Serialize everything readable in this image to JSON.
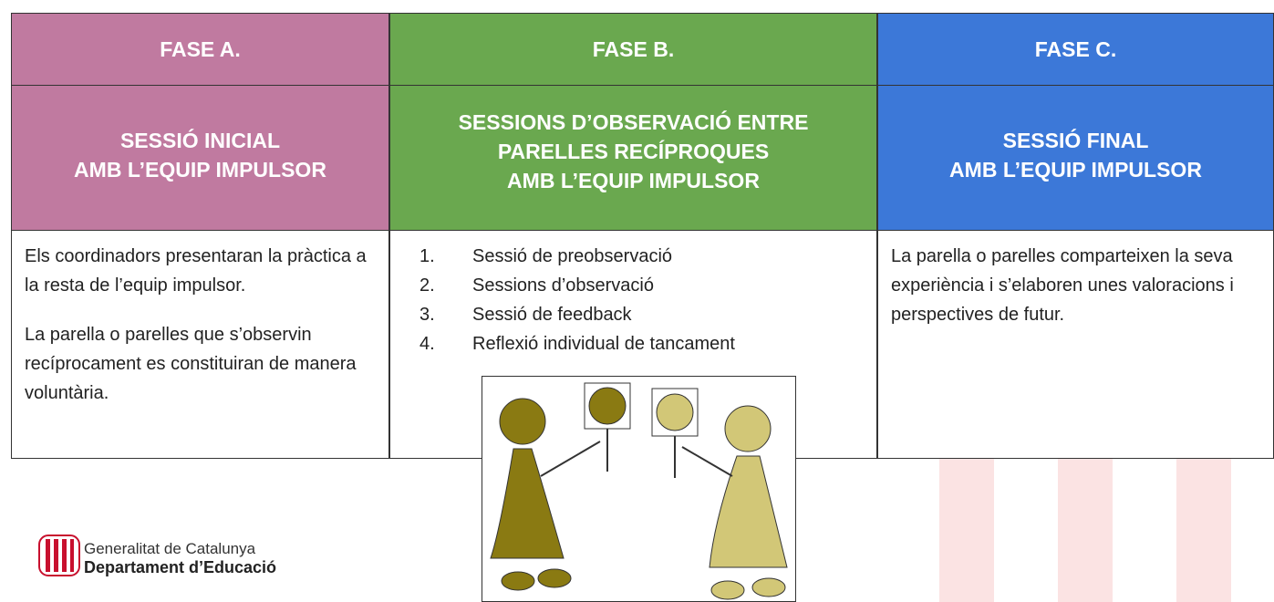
{
  "table": {
    "columns": [
      {
        "phase": "FASE A.",
        "title_lines": [
          "SESSIÓ INICIAL",
          "AMB L’EQUIP IMPULSOR"
        ],
        "paragraphs": [
          "Els coordinadors presentaran la pràctica a la resta de l’equip impulsor.",
          "La parella o parelles que s’observin recíprocament es constituiran de manera voluntària."
        ]
      },
      {
        "phase": "FASE B.",
        "title_lines": [
          "SESSIONS D’OBSERVACIÓ ENTRE",
          "PARELLES RECÍPROQUES",
          "AMB L’EQUIP IMPULSOR"
        ],
        "items": [
          {
            "number": "1.",
            "text": "Sessió de preobservació"
          },
          {
            "number": "2.",
            "text": "Sessions d’observació"
          },
          {
            "number": "3.",
            "text": "Sessió de feedback"
          },
          {
            "number": "4.",
            "text": "Reflexió individual de tancament"
          }
        ]
      },
      {
        "phase": "FASE C.",
        "title_lines": [
          "SESSIÓ FINAL",
          "AMB L’EQUIP IMPULSOR"
        ],
        "paragraphs": [
          "La parella o parelles comparteixen la seva experiència i s’elaboren unes valoracions i perspectives de futur."
        ]
      }
    ]
  },
  "logo": {
    "line1": "Generalitat de Catalunya",
    "line2": "Departament d’Educació"
  }
}
